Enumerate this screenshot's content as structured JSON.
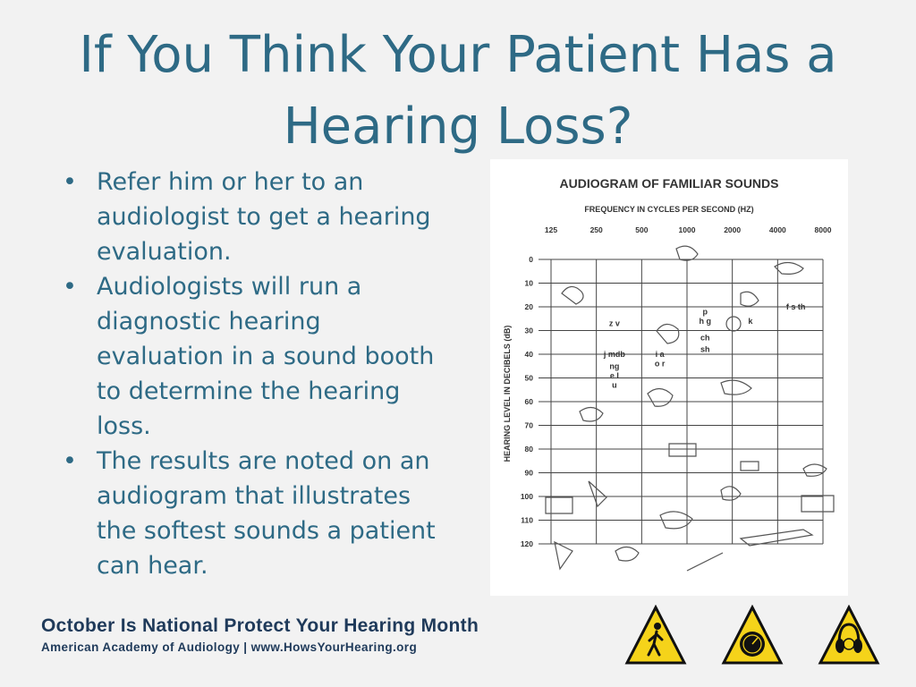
{
  "title": "If You Think Your Patient Has a Hearing Loss?",
  "bullets": [
    "Refer him or her to an audiologist to get a hearing evaluation.",
    "Audiologists will run a diagnostic hearing evaluation in a sound booth to determine the hearing loss.",
    "The results are noted on an audiogram that illustrates the softest sounds a patient can hear."
  ],
  "bullet_glyph": "•",
  "audiogram": {
    "title": "AUDIOGRAM OF FAMILIAR SOUNDS",
    "x_axis_label": "FREQUENCY IN CYCLES PER SECOND (HZ)",
    "y_axis_label": "HEARING LEVEL IN DECIBELS (dB)",
    "frequencies": [
      "125",
      "250",
      "500",
      "1000",
      "2000",
      "4000",
      "8000"
    ],
    "levels": [
      "0",
      "10",
      "20",
      "30",
      "40",
      "50",
      "60",
      "70",
      "80",
      "90",
      "100",
      "110",
      "120"
    ],
    "speech_sounds": [
      {
        "text": "z v",
        "freq": "250",
        "db": 27
      },
      {
        "text": "j mdb",
        "freq": "250",
        "db": 40
      },
      {
        "text": "ng",
        "freq": "250",
        "db": 45
      },
      {
        "text": "e l",
        "freq": "250",
        "db": 49
      },
      {
        "text": "u",
        "freq": "250",
        "db": 53
      },
      {
        "text": "p",
        "freq": "1000",
        "db": 22
      },
      {
        "text": "h g",
        "freq": "1000",
        "db": 26
      },
      {
        "text": "ch",
        "freq": "1000",
        "db": 33
      },
      {
        "text": "sh",
        "freq": "1000",
        "db": 38
      },
      {
        "text": "i a",
        "freq": "500",
        "db": 40
      },
      {
        "text": "o r",
        "freq": "500",
        "db": 44
      },
      {
        "text": "k",
        "freq": "2000",
        "db": 26
      },
      {
        "text": "f s th",
        "freq": "4000",
        "db": 20
      }
    ],
    "colors": {
      "grid": "#444444",
      "text": "#333333",
      "background": "#ffffff"
    }
  },
  "footer": {
    "title": "October Is National Protect Your Hearing Month",
    "subtitle": "American Academy of Audiology | www.HowsYourHearing.org"
  },
  "signs": [
    {
      "icon": "pedestrian-icon",
      "fill": "#f5d31a"
    },
    {
      "icon": "volume-meter-icon",
      "fill": "#f5d31a"
    },
    {
      "icon": "ear-muffs-icon",
      "fill": "#f5d31a"
    }
  ]
}
